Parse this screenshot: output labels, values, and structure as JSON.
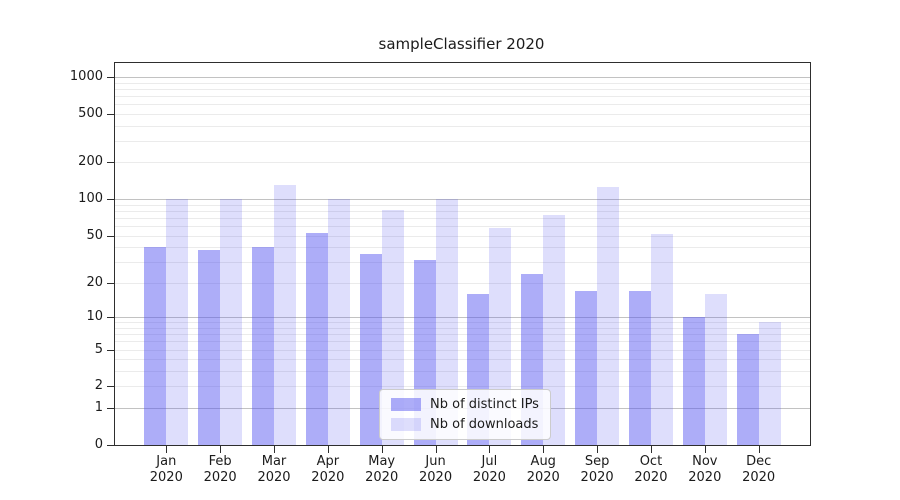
{
  "figure": {
    "title": "sampleClassifier 2020"
  },
  "chart_data": {
    "type": "bar",
    "title": "sampleClassifier 2020",
    "scale": "log1p",
    "grid": true,
    "categories": [
      "Jan",
      "Feb",
      "Mar",
      "Apr",
      "May",
      "Jun",
      "Jul",
      "Aug",
      "Sep",
      "Oct",
      "Nov",
      "Dec"
    ],
    "year_label": "2020",
    "series": [
      {
        "name": "Nb of distinct IPs",
        "color": "rgba(80,80,240,0.47)",
        "values": [
          40,
          38,
          40,
          53,
          35,
          31,
          16,
          24,
          17,
          17,
          10,
          7
        ]
      },
      {
        "name": "Nb of downloads",
        "color": "rgba(80,80,240,0.19)",
        "values": [
          100,
          100,
          130,
          100,
          82,
          100,
          58,
          74,
          125,
          52,
          16,
          9
        ]
      }
    ],
    "xlabel": "",
    "ylabel": "",
    "ylim": [
      0,
      1300
    ],
    "y_ticks": [
      0,
      1,
      2,
      5,
      10,
      20,
      50,
      100,
      200,
      500,
      1000
    ],
    "y_major_gridlines": [
      1,
      10,
      100,
      1000
    ],
    "y_minor_gridlines": [
      2,
      3,
      4,
      5,
      6,
      7,
      8,
      9,
      20,
      30,
      40,
      50,
      60,
      70,
      80,
      90,
      200,
      300,
      400,
      500,
      600,
      700,
      800,
      900
    ],
    "legend_position": "lower center",
    "colors": {
      "major_grid": "#c2c2c2",
      "minor_grid": "#ebebeb",
      "spine": "#2e2e2e",
      "text": "#1b1b1b"
    }
  }
}
